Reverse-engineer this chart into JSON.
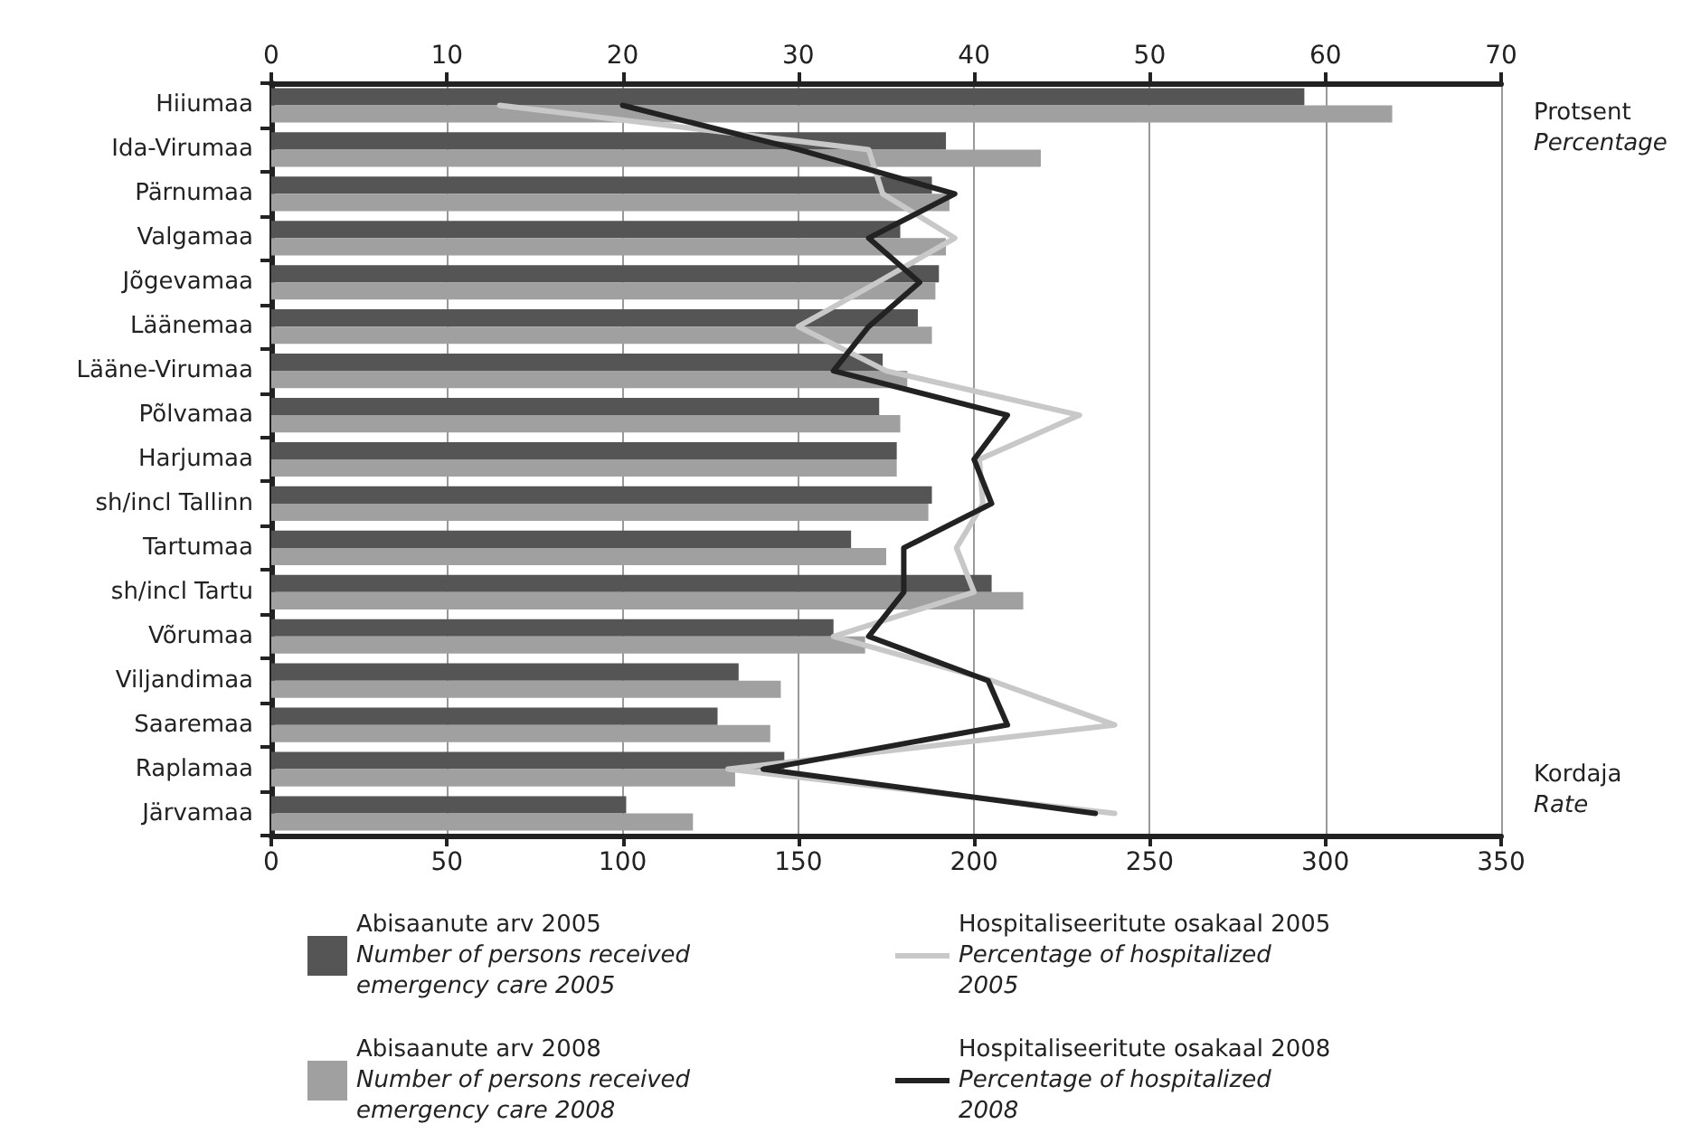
{
  "chart_data": {
    "type": "bar",
    "orientation": "horizontal",
    "categories": [
      "Hiiumaa",
      "Ida-Virumaa",
      "Pärnumaa",
      "Valgamaa",
      "Jõgevamaa",
      "Läänemaa",
      "Lääne-Virumaa",
      "Põlvamaa",
      "Harjumaa",
      "sh/incl Tallinn",
      "Tartumaa",
      "sh/incl Tartu",
      "Võrumaa",
      "Viljandimaa",
      "Saaremaa",
      "Raplamaa",
      "Järvamaa"
    ],
    "series": [
      {
        "name": "Abisaanute arv 2005\nNumber of persons received emergency care 2005",
        "color": "#555555",
        "values": [
          294,
          192,
          188,
          179,
          190,
          184,
          174,
          173,
          178,
          188,
          165,
          205,
          160,
          133,
          127,
          146,
          101
        ]
      },
      {
        "name": "Abisaanute arv 2008\nNumber of persons received emergency care 2008",
        "color": "#a0a0a0",
        "values": [
          319,
          219,
          193,
          192,
          189,
          188,
          181,
          179,
          178,
          187,
          175,
          214,
          169,
          145,
          142,
          132,
          120
        ]
      },
      {
        "name": "Hospitaliseeritute osakaal 2005\nPercentage of hospitalized 2005",
        "type": "line",
        "axis": "x2",
        "color": "#c8c8c8",
        "values": [
          13,
          34,
          34.8,
          38.9,
          34.5,
          30,
          35,
          46,
          40.3,
          40.5,
          39,
          40,
          32,
          41,
          48,
          26,
          48
        ]
      },
      {
        "name": "Hospitaliseeritute osakaal 2008\nPercentage of hospitalized 2008",
        "type": "line",
        "axis": "x2",
        "color": "#222222",
        "values": [
          20,
          30,
          38.9,
          34,
          36.9,
          34,
          32,
          41.9,
          40,
          41,
          36,
          36,
          34,
          40.8,
          41.9,
          28,
          46.9
        ]
      }
    ],
    "xlabel": "Kordaja\nRate",
    "x2label": "Protsent\nPercentage",
    "xlim": [
      0,
      350
    ],
    "xticks": [
      0,
      50,
      100,
      150,
      200,
      250,
      300,
      350
    ],
    "x2lim": [
      0,
      70
    ],
    "x2ticks": [
      0,
      10,
      20,
      30,
      40,
      50,
      60,
      70
    ],
    "grid": "x",
    "legend": "bottom",
    "marker": "none",
    "line_style": "solid"
  }
}
